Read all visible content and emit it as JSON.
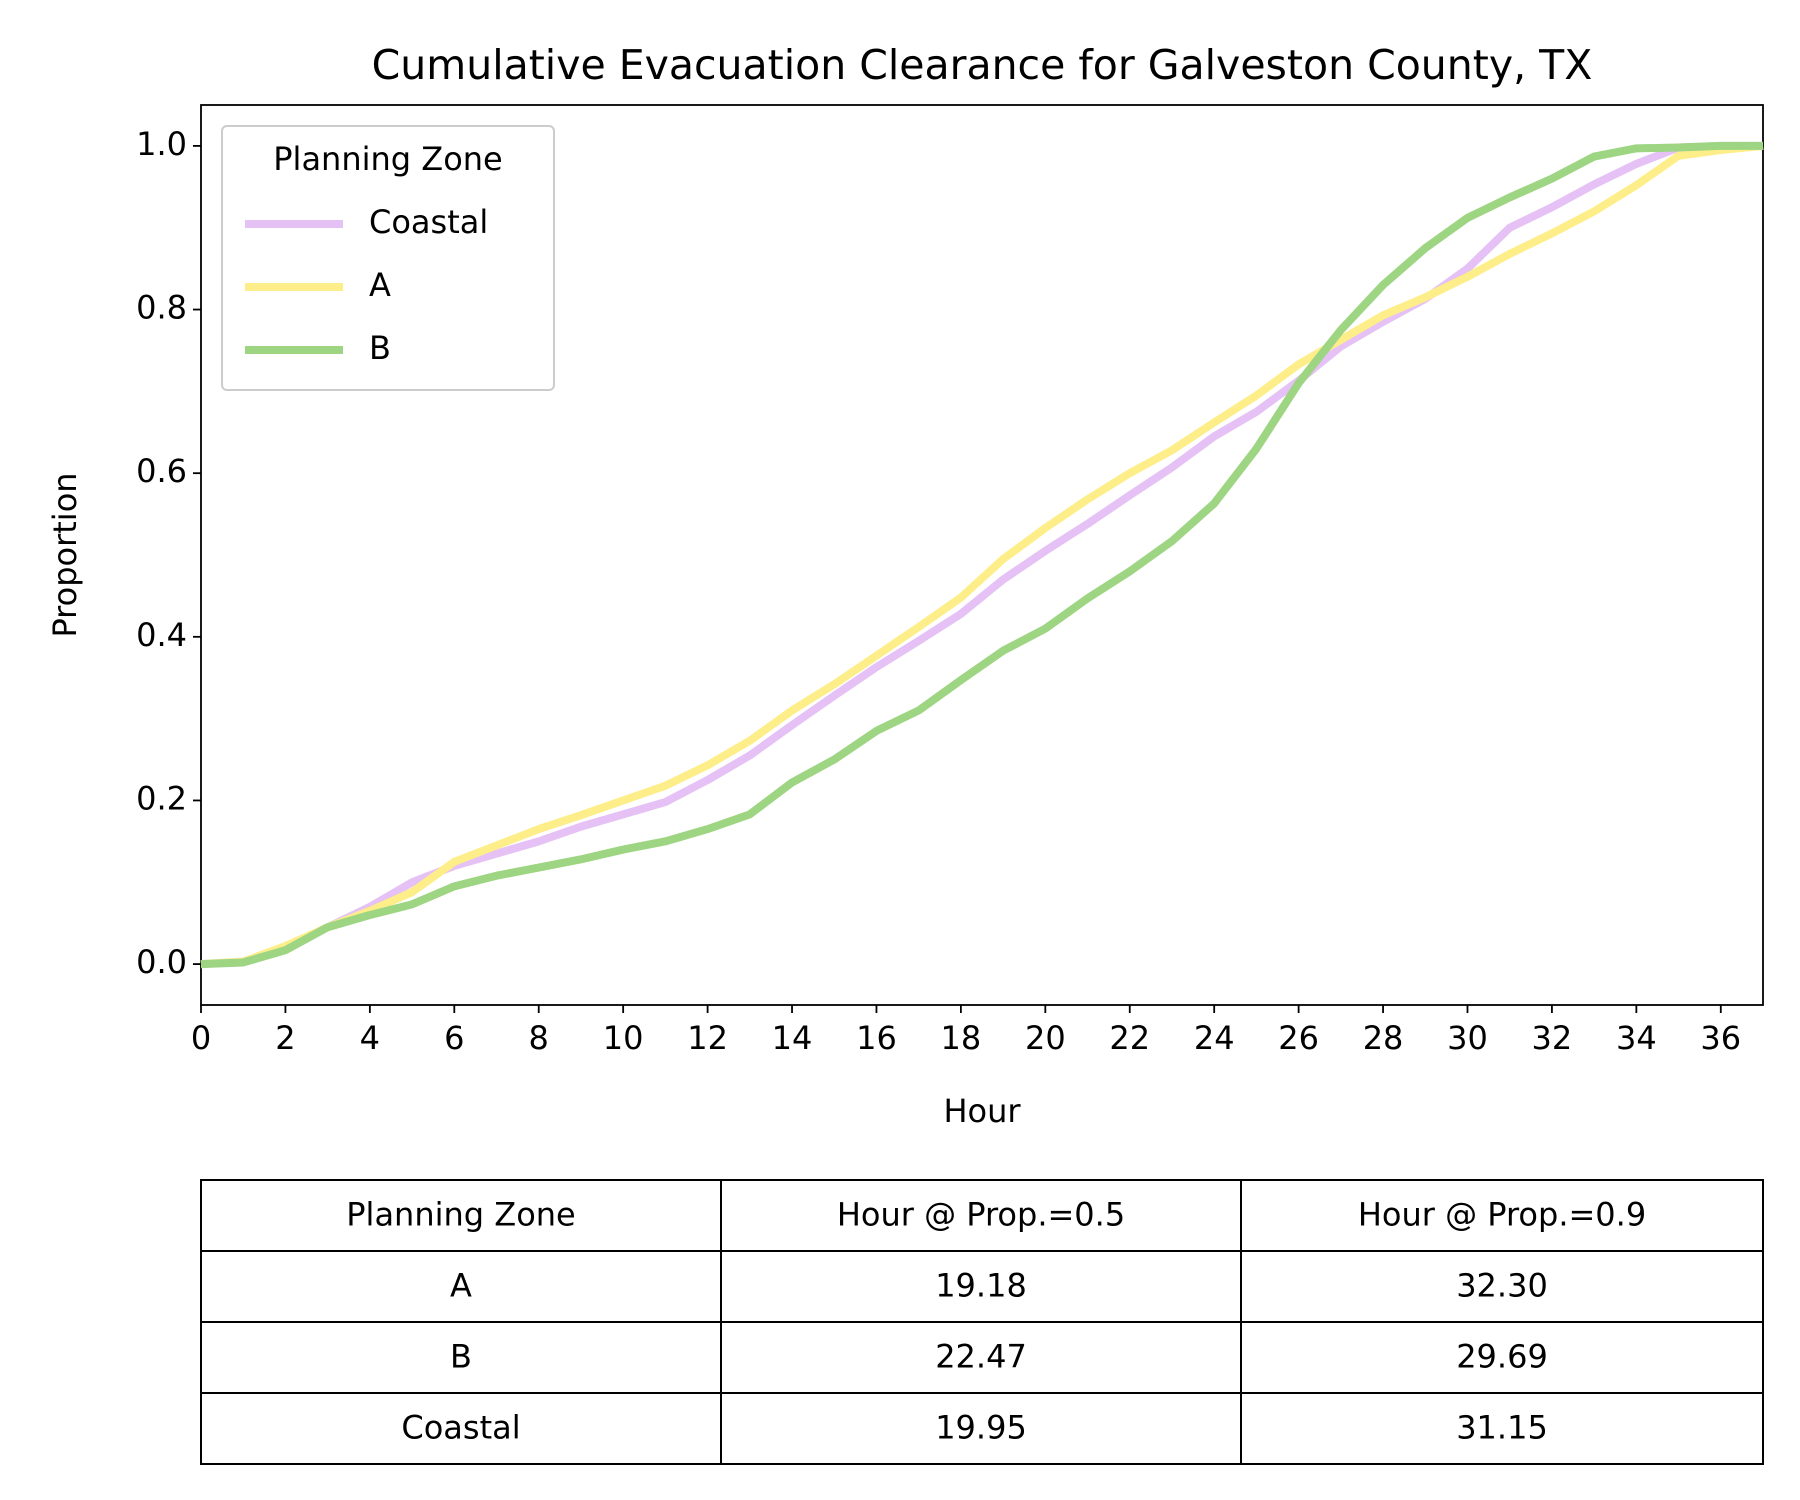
{
  "chart_data": {
    "type": "line",
    "title": "Cumulative Evacuation Clearance for Galveston County, TX",
    "x_label": "Hour",
    "y_label": "Proportion",
    "x": [
      0,
      1,
      2,
      3,
      4,
      5,
      6,
      7,
      8,
      9,
      10,
      11,
      12,
      13,
      14,
      15,
      16,
      17,
      18,
      19,
      20,
      21,
      22,
      23,
      24,
      25,
      26,
      27,
      28,
      29,
      30,
      31,
      32,
      33,
      34,
      35,
      36,
      37
    ],
    "series": [
      {
        "name": "Coastal",
        "color": "#e5c1f5",
        "values": [
          0,
          0.003,
          0.02,
          0.045,
          0.07,
          0.1,
          0.12,
          0.135,
          0.15,
          0.168,
          0.183,
          0.198,
          0.225,
          0.255,
          0.292,
          0.328,
          0.363,
          0.395,
          0.428,
          0.47,
          0.505,
          0.538,
          0.573,
          0.607,
          0.645,
          0.675,
          0.713,
          0.755,
          0.785,
          0.813,
          0.85,
          0.9,
          0.925,
          0.953,
          0.978,
          0.998,
          1.0,
          1.0
        ]
      },
      {
        "name": "A",
        "color": "#fdee8a",
        "values": [
          0,
          0.003,
          0.022,
          0.045,
          0.065,
          0.088,
          0.125,
          0.145,
          0.165,
          0.182,
          0.2,
          0.218,
          0.243,
          0.273,
          0.31,
          0.342,
          0.377,
          0.412,
          0.448,
          0.495,
          0.533,
          0.568,
          0.6,
          0.628,
          0.662,
          0.695,
          0.733,
          0.763,
          0.793,
          0.815,
          0.84,
          0.868,
          0.893,
          0.92,
          0.952,
          0.988,
          0.995,
          1.0
        ]
      },
      {
        "name": "B",
        "color": "#9dd582",
        "values": [
          0,
          0.002,
          0.017,
          0.045,
          0.06,
          0.073,
          0.095,
          0.108,
          0.118,
          0.128,
          0.14,
          0.15,
          0.165,
          0.183,
          0.222,
          0.25,
          0.285,
          0.31,
          0.347,
          0.383,
          0.41,
          0.447,
          0.48,
          0.517,
          0.563,
          0.63,
          0.71,
          0.775,
          0.83,
          0.875,
          0.912,
          0.937,
          0.96,
          0.987,
          0.997,
          0.998,
          1.0,
          1.0
        ]
      }
    ],
    "xlim": [
      0,
      37
    ],
    "ylim": [
      -0.05,
      1.05
    ],
    "xticks": [
      0,
      2,
      4,
      6,
      8,
      10,
      12,
      14,
      16,
      18,
      20,
      22,
      24,
      26,
      28,
      30,
      32,
      34,
      36
    ],
    "yticks": [
      {
        "value": 0,
        "label": "0.0"
      },
      0.2,
      0.4,
      0.6,
      0.8,
      {
        "value": 1,
        "label": "1.0"
      }
    ],
    "grid": false,
    "legend": {
      "title": "Planning Zone",
      "loc": "upper left"
    }
  },
  "table": {
    "header": [
      "Planning Zone",
      "Hour @ Prop.=0.5",
      "Hour @ Prop.=0.9"
    ],
    "rows": [
      [
        "A",
        "19.18",
        "32.30"
      ],
      [
        "B",
        "22.47",
        "29.69"
      ],
      [
        "Coastal",
        "19.95",
        "31.15"
      ]
    ]
  }
}
